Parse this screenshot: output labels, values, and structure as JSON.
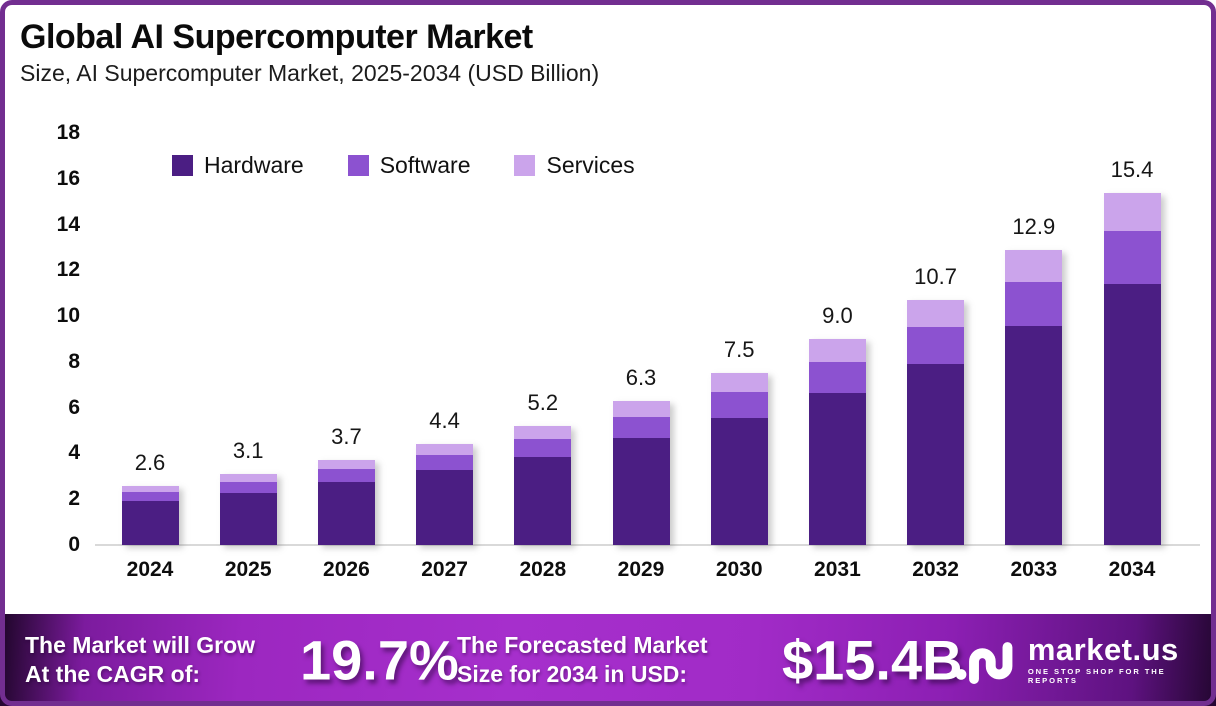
{
  "frame": {
    "border_color": "#722e90",
    "background": "#ffffff"
  },
  "header": {
    "title": "Global AI Supercomputer Market",
    "subtitle": "Size, AI Supercomputer Market, 2025-2034 (USD Billion)"
  },
  "chart_data": {
    "type": "bar",
    "stacked": true,
    "title": "Global AI Supercomputer Market",
    "xlabel": "",
    "ylabel": "USD Billion",
    "ylim": [
      0,
      18
    ],
    "y_ticks": [
      0,
      2,
      4,
      6,
      8,
      10,
      12,
      14,
      16,
      18
    ],
    "grid": false,
    "legend_position": "top-left-inside",
    "categories": [
      "2024",
      "2025",
      "2026",
      "2027",
      "2028",
      "2029",
      "2030",
      "2031",
      "2032",
      "2033",
      "2034"
    ],
    "totals": [
      2.6,
      3.1,
      3.7,
      4.4,
      5.2,
      6.3,
      7.5,
      9.0,
      10.7,
      12.9,
      15.4
    ],
    "total_labels": [
      "2.6",
      "3.1",
      "3.7",
      "4.4",
      "5.2",
      "6.3",
      "7.5",
      "9.0",
      "10.7",
      "12.9",
      "15.4"
    ],
    "series": [
      {
        "name": "Hardware",
        "color": "#4B1E83",
        "values": [
          1.92,
          2.29,
          2.74,
          3.26,
          3.85,
          4.66,
          5.55,
          6.66,
          7.92,
          9.55,
          11.4
        ]
      },
      {
        "name": "Software",
        "color": "#8C52D0",
        "values": [
          0.39,
          0.47,
          0.56,
          0.66,
          0.78,
          0.95,
          1.13,
          1.35,
          1.61,
          1.94,
          2.31
        ]
      },
      {
        "name": "Services",
        "color": "#CBA4EB",
        "values": [
          0.29,
          0.34,
          0.4,
          0.48,
          0.57,
          0.69,
          0.82,
          0.99,
          1.17,
          1.41,
          1.69
        ]
      }
    ]
  },
  "legend": {
    "items": [
      {
        "label": "Hardware",
        "color": "#4B1E83"
      },
      {
        "label": "Software",
        "color": "#8C52D0"
      },
      {
        "label": "Services",
        "color": "#CBA4EB"
      }
    ]
  },
  "footer": {
    "cagr_label_line1": "The Market will Grow",
    "cagr_label_line2": "At the CAGR of:",
    "cagr_value": "19.7%",
    "forecast_label_line1": "The Forecasted Market",
    "forecast_label_line2": "Size for 2034 in USD:",
    "forecast_value": "$15.4B",
    "brand_name": "market.us",
    "brand_tagline": "ONE STOP SHOP FOR THE REPORTS"
  }
}
